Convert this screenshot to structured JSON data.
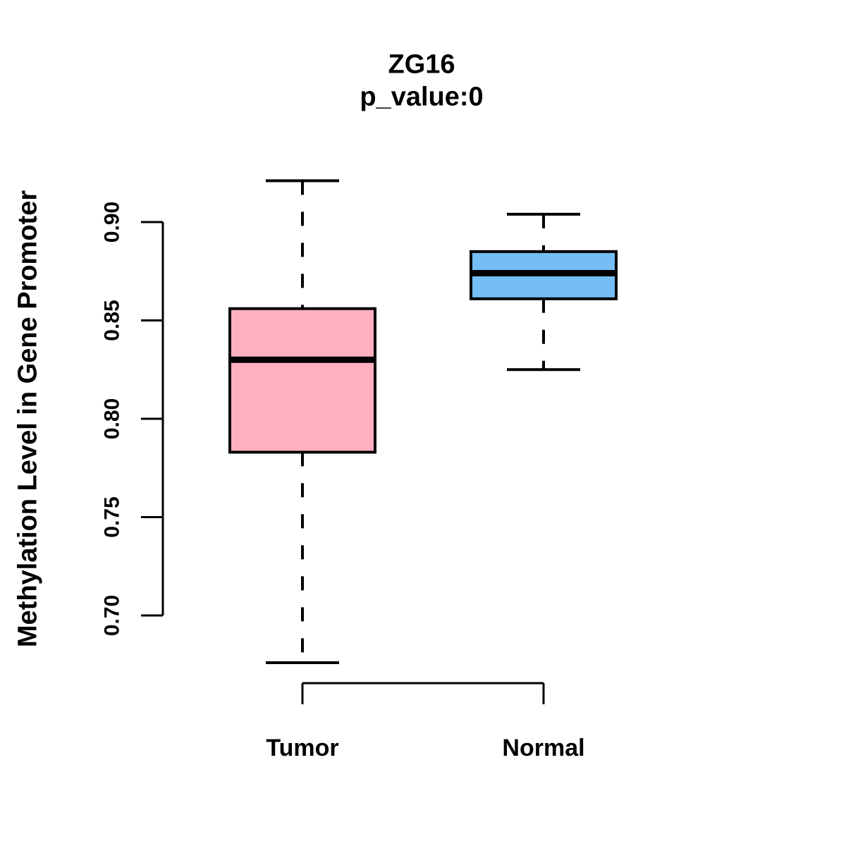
{
  "chart_data": {
    "type": "boxplot",
    "title": "ZG16",
    "subtitle": "p_value:0",
    "ylabel": "Methylation Level in Gene Promoter",
    "xlabel": "",
    "categories": [
      "Tumor",
      "Normal"
    ],
    "y_ticks": [
      0.7,
      0.75,
      0.8,
      0.85,
      0.9
    ],
    "y_tick_labels": [
      "0.70",
      "0.75",
      "0.80",
      "0.85",
      "0.90"
    ],
    "ylim": [
      0.7,
      0.9
    ],
    "grid": false,
    "legend": "none",
    "series": [
      {
        "name": "Tumor",
        "box_color": "#FFB0C0",
        "whisker_low": 0.676,
        "q1": 0.783,
        "median": 0.83,
        "q3": 0.856,
        "whisker_high": 0.921
      },
      {
        "name": "Normal",
        "box_color": "#74BDF5",
        "whisker_low": 0.825,
        "q1": 0.861,
        "median": 0.874,
        "q3": 0.885,
        "whisker_high": 0.904
      }
    ],
    "colors": {
      "stroke": "#000000",
      "background": "#ffffff"
    }
  }
}
